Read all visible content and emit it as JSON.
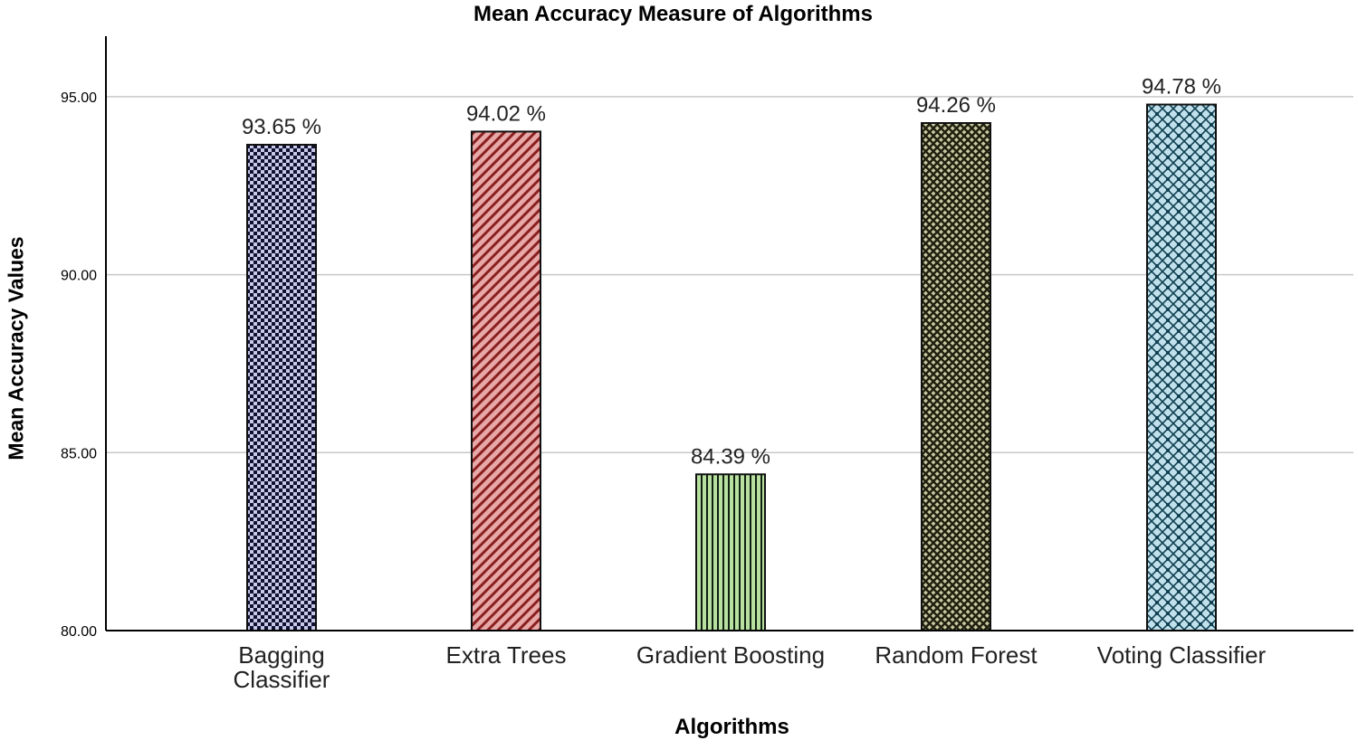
{
  "chart_data": {
    "type": "bar",
    "title": "Mean Accuracy Measure of Algorithms",
    "xlabel": "Algorithms",
    "ylabel": "Mean Accuracy Values",
    "ylim": [
      80,
      96.7
    ],
    "yticks": [
      "80.00",
      "85.00",
      "90.00",
      "95.00"
    ],
    "grid": true,
    "categories": [
      [
        "Bagging",
        "Classifier"
      ],
      [
        "Extra Trees"
      ],
      [
        "Gradient Boosting"
      ],
      [
        "Random Forest"
      ],
      [
        "Voting Classifier"
      ]
    ],
    "values": [
      93.65,
      94.02,
      84.39,
      94.26,
      94.78
    ],
    "data_labels": [
      "93.65 %",
      "94.02 %",
      "84.39 %",
      "94.26 %",
      "94.78 %"
    ],
    "colors": {
      "fills": [
        "#c8c8e8",
        "#e8a8a8",
        "#b8e0a0",
        "#c8c8a0",
        "#c0e0ec"
      ],
      "ink": [
        "#101030",
        "#8a2020",
        "#102010",
        "#202010",
        "#104050"
      ],
      "gridline": "#c8c8c8",
      "axis": "#000000"
    }
  }
}
